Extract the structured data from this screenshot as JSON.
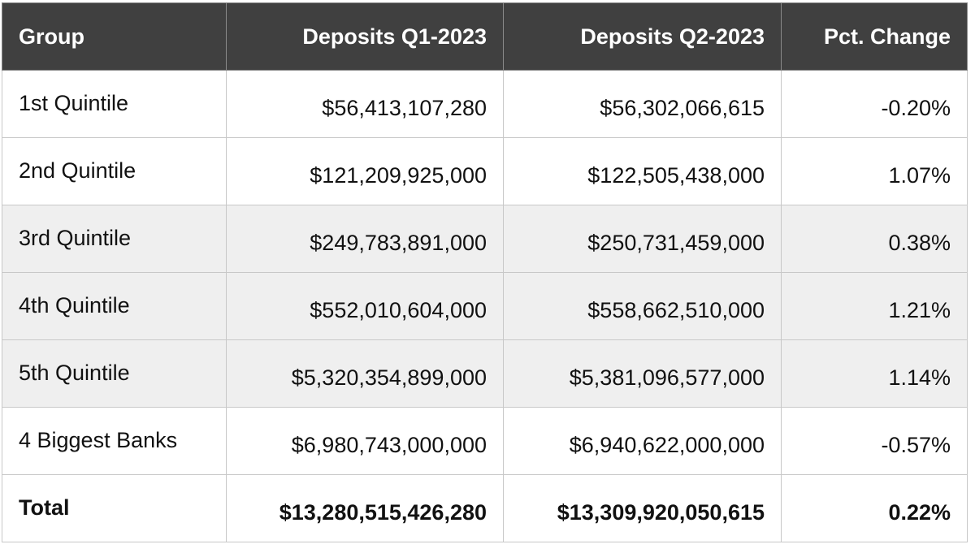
{
  "table": {
    "header": [
      "Group",
      "Deposits Q1-2023",
      "Deposits Q2-2023",
      "Pct. Change"
    ],
    "rows": [
      [
        "1st Quintile",
        "$56,413,107,280",
        "$56,302,066,615",
        "-0.20%"
      ],
      [
        "2nd Quintile",
        "$121,209,925,000",
        "$122,505,438,000",
        "1.07%"
      ],
      [
        "3rd Quintile",
        "$249,783,891,000",
        "$250,731,459,000",
        "0.38%"
      ],
      [
        "4th Quintile",
        "$552,010,604,000",
        "$558,662,510,000",
        "1.21%"
      ],
      [
        "5th Quintile",
        "$5,320,354,899,000",
        "$5,381,096,577,000",
        "1.14%"
      ],
      [
        "4 Biggest Banks",
        "$6,980,743,000,000",
        "$6,940,622,000,000",
        "-0.57%"
      ]
    ],
    "total": [
      "Total",
      "$13,280,515,426,280",
      "$13,309,920,050,615",
      "0.22%"
    ]
  }
}
